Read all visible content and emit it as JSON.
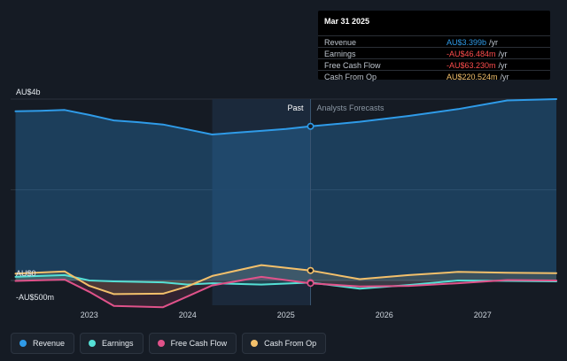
{
  "chart_data": {
    "type": "line",
    "y_tick_labels": [
      {
        "label": "AU$4b",
        "value": 4000
      },
      {
        "label": "AU$0",
        "value": 0
      },
      {
        "label": "-AU$500m",
        "value": -500
      }
    ],
    "ylim": [
      -700,
      4000
    ],
    "xlim": [
      2022.2,
      2027.75
    ],
    "x_tick_labels": [
      "2023",
      "2024",
      "2025",
      "2026",
      "2027"
    ],
    "x_ticks": [
      2023,
      2024,
      2025,
      2026,
      2027
    ],
    "past_region": [
      2024.25,
      2025.25
    ],
    "divider_x": 2025.25,
    "past_label": "Past",
    "forecast_label": "Analysts Forecasts",
    "series": [
      {
        "name": "Revenue",
        "color": "#2f9be8",
        "x": [
          2022.25,
          2022.5,
          2022.75,
          2023.0,
          2023.25,
          2023.5,
          2023.75,
          2024.0,
          2024.25,
          2024.5,
          2024.75,
          2025.0,
          2025.25,
          2025.75,
          2026.25,
          2026.75,
          2027.25,
          2027.75
        ],
        "y": [
          3730,
          3740,
          3760,
          3650,
          3530,
          3490,
          3440,
          3330,
          3220,
          3260,
          3300,
          3340,
          3399,
          3500,
          3630,
          3780,
          3970,
          4000
        ]
      },
      {
        "name": "Earnings",
        "color": "#55e0d6",
        "x": [
          2022.25,
          2022.75,
          2023.0,
          2023.25,
          2023.75,
          2024.0,
          2024.25,
          2024.75,
          2025.25,
          2025.75,
          2026.25,
          2026.75,
          2027.25,
          2027.75
        ],
        "y": [
          80,
          120,
          0,
          -20,
          -40,
          -90,
          -60,
          -90,
          -46,
          -180,
          -100,
          0,
          -10,
          -20
        ]
      },
      {
        "name": "Free Cash Flow",
        "color": "#e0528a",
        "x": [
          2022.25,
          2022.75,
          2023.0,
          2023.25,
          2023.75,
          2024.0,
          2024.25,
          2024.75,
          2025.25,
          2025.75,
          2026.25,
          2026.75,
          2027.25,
          2027.75
        ],
        "y": [
          -10,
          20,
          -250,
          -560,
          -590,
          -350,
          -110,
          80,
          -63,
          -130,
          -120,
          -60,
          10,
          0
        ]
      },
      {
        "name": "Cash From Op",
        "color": "#f3c06b",
        "x": [
          2022.25,
          2022.75,
          2023.0,
          2023.25,
          2023.75,
          2024.0,
          2024.25,
          2024.75,
          2025.25,
          2025.75,
          2026.25,
          2026.75,
          2027.25,
          2027.75
        ],
        "y": [
          150,
          200,
          -120,
          -300,
          -290,
          -130,
          100,
          340,
          220,
          30,
          120,
          190,
          170,
          160
        ]
      }
    ],
    "highlight_x": 2025.25
  },
  "tooltip": {
    "date": "Mar 31 2025",
    "unit": "/yr",
    "rows": [
      {
        "label": "Revenue",
        "value": "AU$3.399b",
        "color": "#2f9be8"
      },
      {
        "label": "Earnings",
        "value": "-AU$46.484m",
        "color": "#ff4d4d"
      },
      {
        "label": "Free Cash Flow",
        "value": "-AU$63.230m",
        "color": "#ff4d4d"
      },
      {
        "label": "Cash From Op",
        "value": "AU$220.524m",
        "color": "#f3c06b"
      }
    ]
  },
  "legend": [
    {
      "label": "Revenue",
      "color": "#2f9be8"
    },
    {
      "label": "Earnings",
      "color": "#55e0d6"
    },
    {
      "label": "Free Cash Flow",
      "color": "#e0528a"
    },
    {
      "label": "Cash From Op",
      "color": "#f3c06b"
    }
  ]
}
